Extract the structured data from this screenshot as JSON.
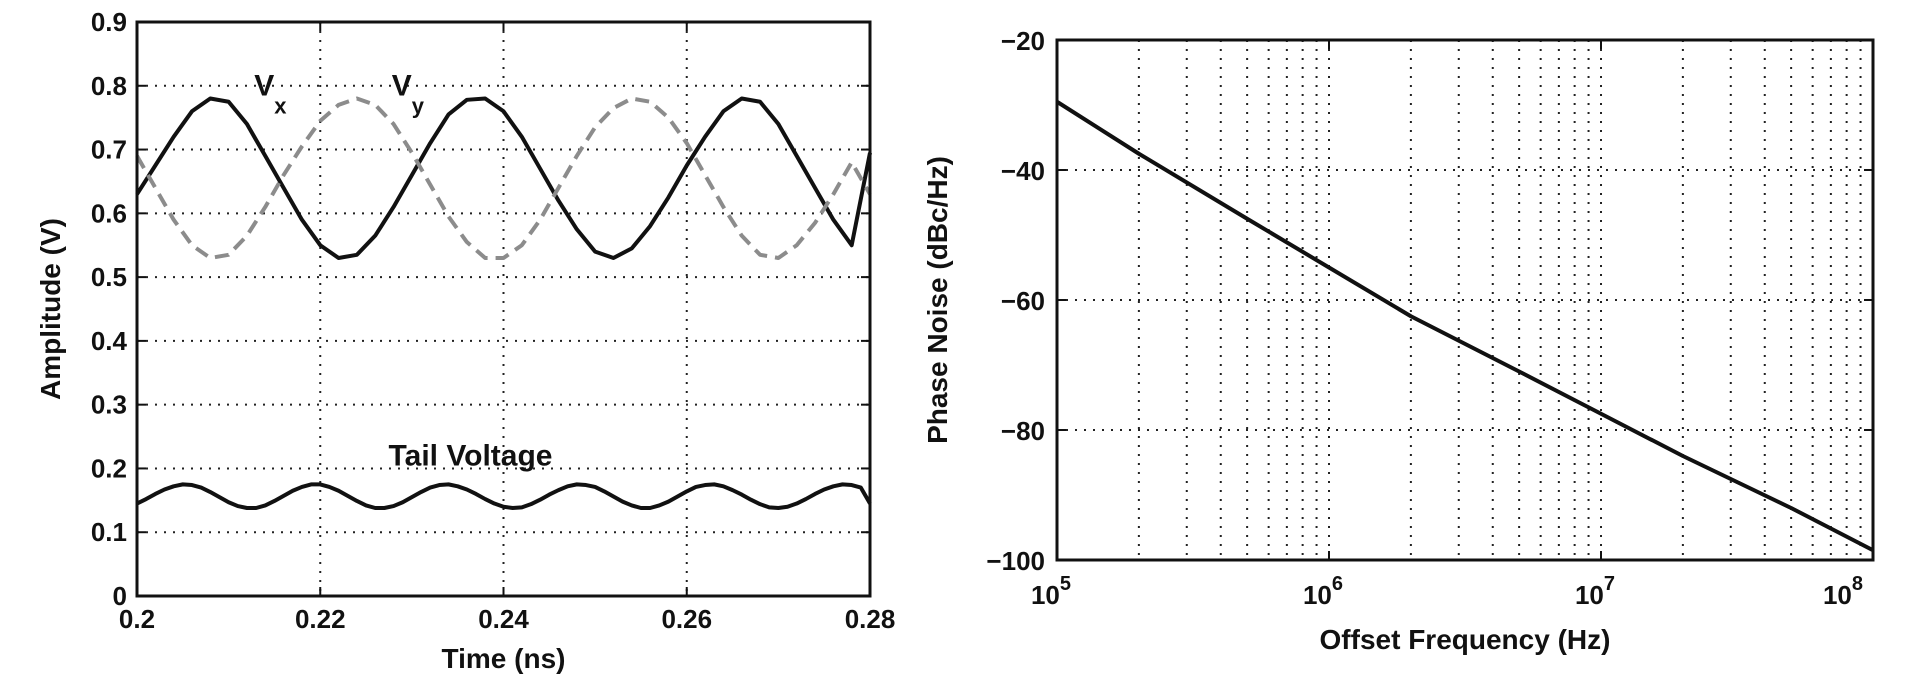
{
  "chart_data": [
    {
      "type": "line",
      "xlabel": "Time (ns)",
      "ylabel": "Amplitude (V)",
      "xlim": [
        0.2,
        0.28
      ],
      "ylim": [
        0,
        0.9
      ],
      "xticks": [
        0.2,
        0.22,
        0.24,
        0.26,
        0.28
      ],
      "xtick_labels": [
        "0.2",
        "0.22",
        "0.24",
        "0.26",
        "0.28"
      ],
      "yticks": [
        0,
        0.1,
        0.2,
        0.3,
        0.4,
        0.5,
        0.6,
        0.7,
        0.8,
        0.9
      ],
      "ytick_labels": [
        "0",
        "0.1",
        "0.2",
        "0.3",
        "0.4",
        "0.5",
        "0.6",
        "0.7",
        "0.8",
        "0.9"
      ],
      "grid": true,
      "annotations": [
        {
          "text": "V",
          "sub": "x",
          "x": 0.2128,
          "y": 0.785
        },
        {
          "text": "V",
          "sub": "y",
          "x": 0.2278,
          "y": 0.785
        },
        {
          "text": "Tail Voltage",
          "x": 0.2364,
          "y": 0.205
        }
      ],
      "series": [
        {
          "name": "V",
          "sub": "x",
          "style": "solid",
          "color": "#111111",
          "x": [
            0.2,
            0.202,
            0.204,
            0.206,
            0.208,
            0.21,
            0.212,
            0.214,
            0.216,
            0.218,
            0.22,
            0.222,
            0.224,
            0.226,
            0.228,
            0.23,
            0.232,
            0.234,
            0.236,
            0.238,
            0.24,
            0.242,
            0.244,
            0.246,
            0.248,
            0.25,
            0.252,
            0.254,
            0.256,
            0.258,
            0.26,
            0.262,
            0.264,
            0.266,
            0.268,
            0.27,
            0.272,
            0.274,
            0.276,
            0.278,
            0.28
          ],
          "y": [
            0.63,
            0.675,
            0.72,
            0.76,
            0.78,
            0.775,
            0.74,
            0.69,
            0.64,
            0.59,
            0.55,
            0.53,
            0.535,
            0.565,
            0.61,
            0.66,
            0.71,
            0.755,
            0.778,
            0.78,
            0.76,
            0.72,
            0.67,
            0.62,
            0.575,
            0.54,
            0.53,
            0.545,
            0.58,
            0.625,
            0.675,
            0.72,
            0.76,
            0.78,
            0.775,
            0.74,
            0.69,
            0.64,
            0.59,
            0.55,
            0.695
          ]
        },
        {
          "name": "V",
          "sub": "y",
          "style": "dashed",
          "color": "#8c8c8c",
          "x": [
            0.2,
            0.202,
            0.204,
            0.206,
            0.208,
            0.21,
            0.212,
            0.214,
            0.216,
            0.218,
            0.22,
            0.222,
            0.224,
            0.226,
            0.228,
            0.23,
            0.232,
            0.234,
            0.236,
            0.238,
            0.24,
            0.242,
            0.244,
            0.246,
            0.248,
            0.25,
            0.252,
            0.254,
            0.256,
            0.258,
            0.26,
            0.262,
            0.264,
            0.266,
            0.268,
            0.27,
            0.272,
            0.274,
            0.276,
            0.278,
            0.28
          ],
          "y": [
            0.69,
            0.64,
            0.59,
            0.55,
            0.53,
            0.535,
            0.565,
            0.61,
            0.66,
            0.705,
            0.745,
            0.77,
            0.78,
            0.77,
            0.74,
            0.695,
            0.645,
            0.595,
            0.555,
            0.53,
            0.53,
            0.55,
            0.59,
            0.64,
            0.69,
            0.735,
            0.765,
            0.78,
            0.775,
            0.75,
            0.71,
            0.66,
            0.61,
            0.565,
            0.535,
            0.53,
            0.55,
            0.585,
            0.63,
            0.68,
            0.63
          ]
        },
        {
          "name": "Tail Voltage",
          "style": "solid",
          "color": "#111111",
          "x": [
            0.2,
            0.201,
            0.202,
            0.203,
            0.204,
            0.205,
            0.206,
            0.207,
            0.208,
            0.209,
            0.21,
            0.211,
            0.212,
            0.213,
            0.214,
            0.215,
            0.216,
            0.217,
            0.218,
            0.219,
            0.22,
            0.221,
            0.222,
            0.223,
            0.224,
            0.225,
            0.226,
            0.227,
            0.228,
            0.229,
            0.23,
            0.231,
            0.232,
            0.233,
            0.234,
            0.235,
            0.236,
            0.237,
            0.238,
            0.239,
            0.24,
            0.241,
            0.242,
            0.243,
            0.244,
            0.245,
            0.246,
            0.247,
            0.248,
            0.249,
            0.25,
            0.251,
            0.252,
            0.253,
            0.254,
            0.255,
            0.256,
            0.257,
            0.258,
            0.259,
            0.26,
            0.261,
            0.262,
            0.263,
            0.264,
            0.265,
            0.266,
            0.267,
            0.268,
            0.269,
            0.27,
            0.271,
            0.272,
            0.273,
            0.274,
            0.275,
            0.276,
            0.277,
            0.278,
            0.279,
            0.28
          ],
          "y": [
            0.145,
            0.152,
            0.16,
            0.167,
            0.172,
            0.175,
            0.174,
            0.17,
            0.163,
            0.155,
            0.147,
            0.141,
            0.138,
            0.138,
            0.142,
            0.149,
            0.157,
            0.165,
            0.171,
            0.175,
            0.175,
            0.171,
            0.165,
            0.157,
            0.149,
            0.142,
            0.138,
            0.138,
            0.141,
            0.147,
            0.155,
            0.163,
            0.17,
            0.174,
            0.175,
            0.172,
            0.167,
            0.16,
            0.152,
            0.145,
            0.14,
            0.138,
            0.139,
            0.144,
            0.151,
            0.159,
            0.166,
            0.172,
            0.175,
            0.174,
            0.171,
            0.164,
            0.156,
            0.148,
            0.142,
            0.138,
            0.138,
            0.142,
            0.148,
            0.156,
            0.164,
            0.171,
            0.174,
            0.175,
            0.172,
            0.166,
            0.159,
            0.151,
            0.144,
            0.139,
            0.138,
            0.14,
            0.145,
            0.152,
            0.16,
            0.167,
            0.172,
            0.175,
            0.174,
            0.17,
            0.145
          ]
        }
      ]
    },
    {
      "type": "line",
      "xlabel": "Offset Frequency (Hz)",
      "ylabel": "Phase Noise (dBc/Hz)",
      "xscale": "log",
      "xlim": [
        100000,
        100000000
      ],
      "ylim": [
        -100,
        -20
      ],
      "xticks": [
        100000,
        1000000,
        10000000,
        100000000
      ],
      "xtick_labels": [
        {
          "base": "10",
          "exp": "5"
        },
        {
          "base": "10",
          "exp": "6"
        },
        {
          "base": "10",
          "exp": "7"
        },
        {
          "base": "10",
          "exp": "8"
        }
      ],
      "yticks": [
        -100,
        -80,
        -60,
        -40,
        -20
      ],
      "ytick_labels": [
        "−100",
        "−80",
        "−60",
        "−40",
        "−20"
      ],
      "grid": true,
      "minor_grid": true,
      "series": [
        {
          "style": "solid",
          "color": "#111111",
          "x": [
            100000,
            200000,
            500000,
            1000000,
            2000000,
            5000000,
            10000000,
            20000000,
            50000000,
            100000000
          ],
          "y": [
            -29.5,
            -37.5,
            -47.5,
            -55,
            -62.5,
            -71,
            -77.5,
            -84,
            -92,
            -98.5
          ]
        }
      ]
    }
  ]
}
